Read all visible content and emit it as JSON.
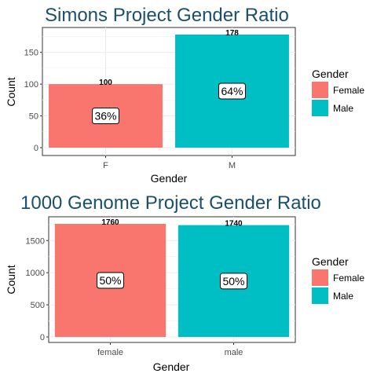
{
  "colors": {
    "female": "#F8766D",
    "male": "#00BFC4",
    "title": "#1A4F6E",
    "grid": "#EBEBEB",
    "axis_text": "#4D4D4D"
  },
  "chart_data": [
    {
      "type": "bar",
      "title": "Simons Project Gender Ratio",
      "xlabel": "Gender",
      "ylabel": "Count",
      "categories": [
        "F",
        "M"
      ],
      "values": [
        100,
        178
      ],
      "value_labels": [
        "100",
        "178"
      ],
      "percent_labels": [
        "36%",
        "64%"
      ],
      "ylim": [
        0,
        178
      ],
      "yticks": [
        0,
        50,
        100,
        150
      ],
      "grid": true,
      "legend": {
        "title": "Gender",
        "position": "right",
        "entries": [
          "Female",
          "Male"
        ]
      }
    },
    {
      "type": "bar",
      "title": "1000 Genome Project Gender Ratio",
      "xlabel": "Gender",
      "ylabel": "Count",
      "categories": [
        "female",
        "male"
      ],
      "values": [
        1760,
        1740
      ],
      "value_labels": [
        "1760",
        "1740"
      ],
      "percent_labels": [
        "50%",
        "50%"
      ],
      "ylim": [
        0,
        1760
      ],
      "yticks": [
        0,
        500,
        1000,
        1500
      ],
      "grid": true,
      "legend": {
        "title": "Gender",
        "position": "right",
        "entries": [
          "Female",
          "Male"
        ]
      }
    }
  ]
}
